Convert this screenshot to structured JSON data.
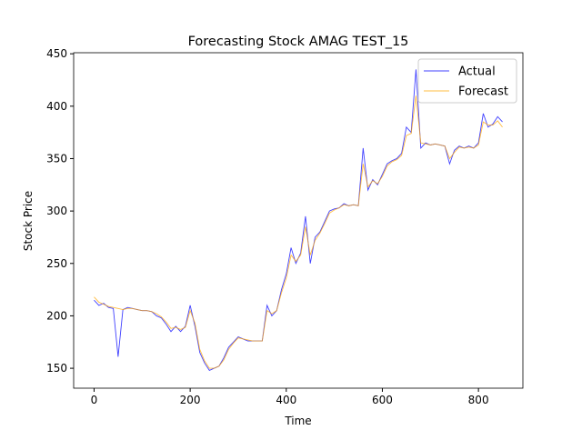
{
  "chart_data": {
    "type": "line",
    "title": "Forecasting Stock AMAG TEST_15",
    "x_label": "Time",
    "y_label": "Stock Price",
    "x": [
      0,
      10,
      20,
      30,
      40,
      50,
      60,
      70,
      80,
      90,
      100,
      110,
      120,
      130,
      140,
      150,
      160,
      170,
      180,
      190,
      200,
      210,
      220,
      230,
      240,
      250,
      260,
      270,
      280,
      290,
      300,
      310,
      320,
      330,
      340,
      350,
      360,
      370,
      380,
      390,
      400,
      410,
      420,
      430,
      440,
      450,
      460,
      470,
      480,
      490,
      500,
      510,
      520,
      530,
      540,
      550,
      560,
      570,
      580,
      590,
      600,
      610,
      620,
      630,
      640,
      650,
      660,
      670,
      680,
      690,
      700,
      710,
      720,
      730,
      740,
      750,
      760,
      770,
      780,
      790,
      800,
      810,
      820,
      830,
      840,
      850
    ],
    "series": [
      {
        "name": "Actual",
        "color": "#0000ff",
        "values": [
          215,
          210,
          212,
          208,
          207,
          161,
          206,
          208,
          207,
          206,
          205,
          205,
          204,
          200,
          198,
          192,
          185,
          190,
          185,
          190,
          210,
          190,
          165,
          155,
          148,
          150,
          152,
          160,
          170,
          175,
          180,
          178,
          176,
          176,
          176,
          176,
          210,
          200,
          205,
          225,
          240,
          265,
          250,
          260,
          295,
          250,
          275,
          280,
          290,
          300,
          302,
          303,
          307,
          305,
          306,
          305,
          360,
          320,
          330,
          325,
          335,
          345,
          348,
          350,
          355,
          380,
          375,
          435,
          360,
          365,
          363,
          364,
          363,
          362,
          345,
          358,
          362,
          360,
          362,
          360,
          365,
          393,
          380,
          383,
          390,
          385
        ]
      },
      {
        "name": "Forecast",
        "color": "#ffa500",
        "values": [
          218,
          213,
          211,
          209,
          208,
          207,
          206,
          207,
          207,
          206,
          205,
          205,
          204,
          202,
          199,
          194,
          188,
          189,
          187,
          189,
          205,
          193,
          168,
          157,
          150,
          150,
          152,
          158,
          168,
          174,
          179,
          178,
          177,
          176,
          176,
          176,
          205,
          202,
          205,
          222,
          236,
          258,
          252,
          258,
          285,
          258,
          272,
          279,
          288,
          298,
          301,
          303,
          306,
          305,
          306,
          305,
          345,
          323,
          329,
          326,
          333,
          343,
          347,
          349,
          353,
          372,
          374,
          410,
          365,
          364,
          363,
          364,
          363,
          362,
          350,
          356,
          361,
          360,
          361,
          360,
          363,
          385,
          382,
          382,
          386,
          380
        ]
      }
    ],
    "xlim": [
      -42.5,
      892.5
    ],
    "ylim": [
      131,
      451
    ],
    "xticks": [
      0,
      200,
      400,
      600,
      800
    ],
    "yticks": [
      150,
      200,
      250,
      300,
      350,
      400,
      450
    ],
    "legend": "upper right"
  }
}
